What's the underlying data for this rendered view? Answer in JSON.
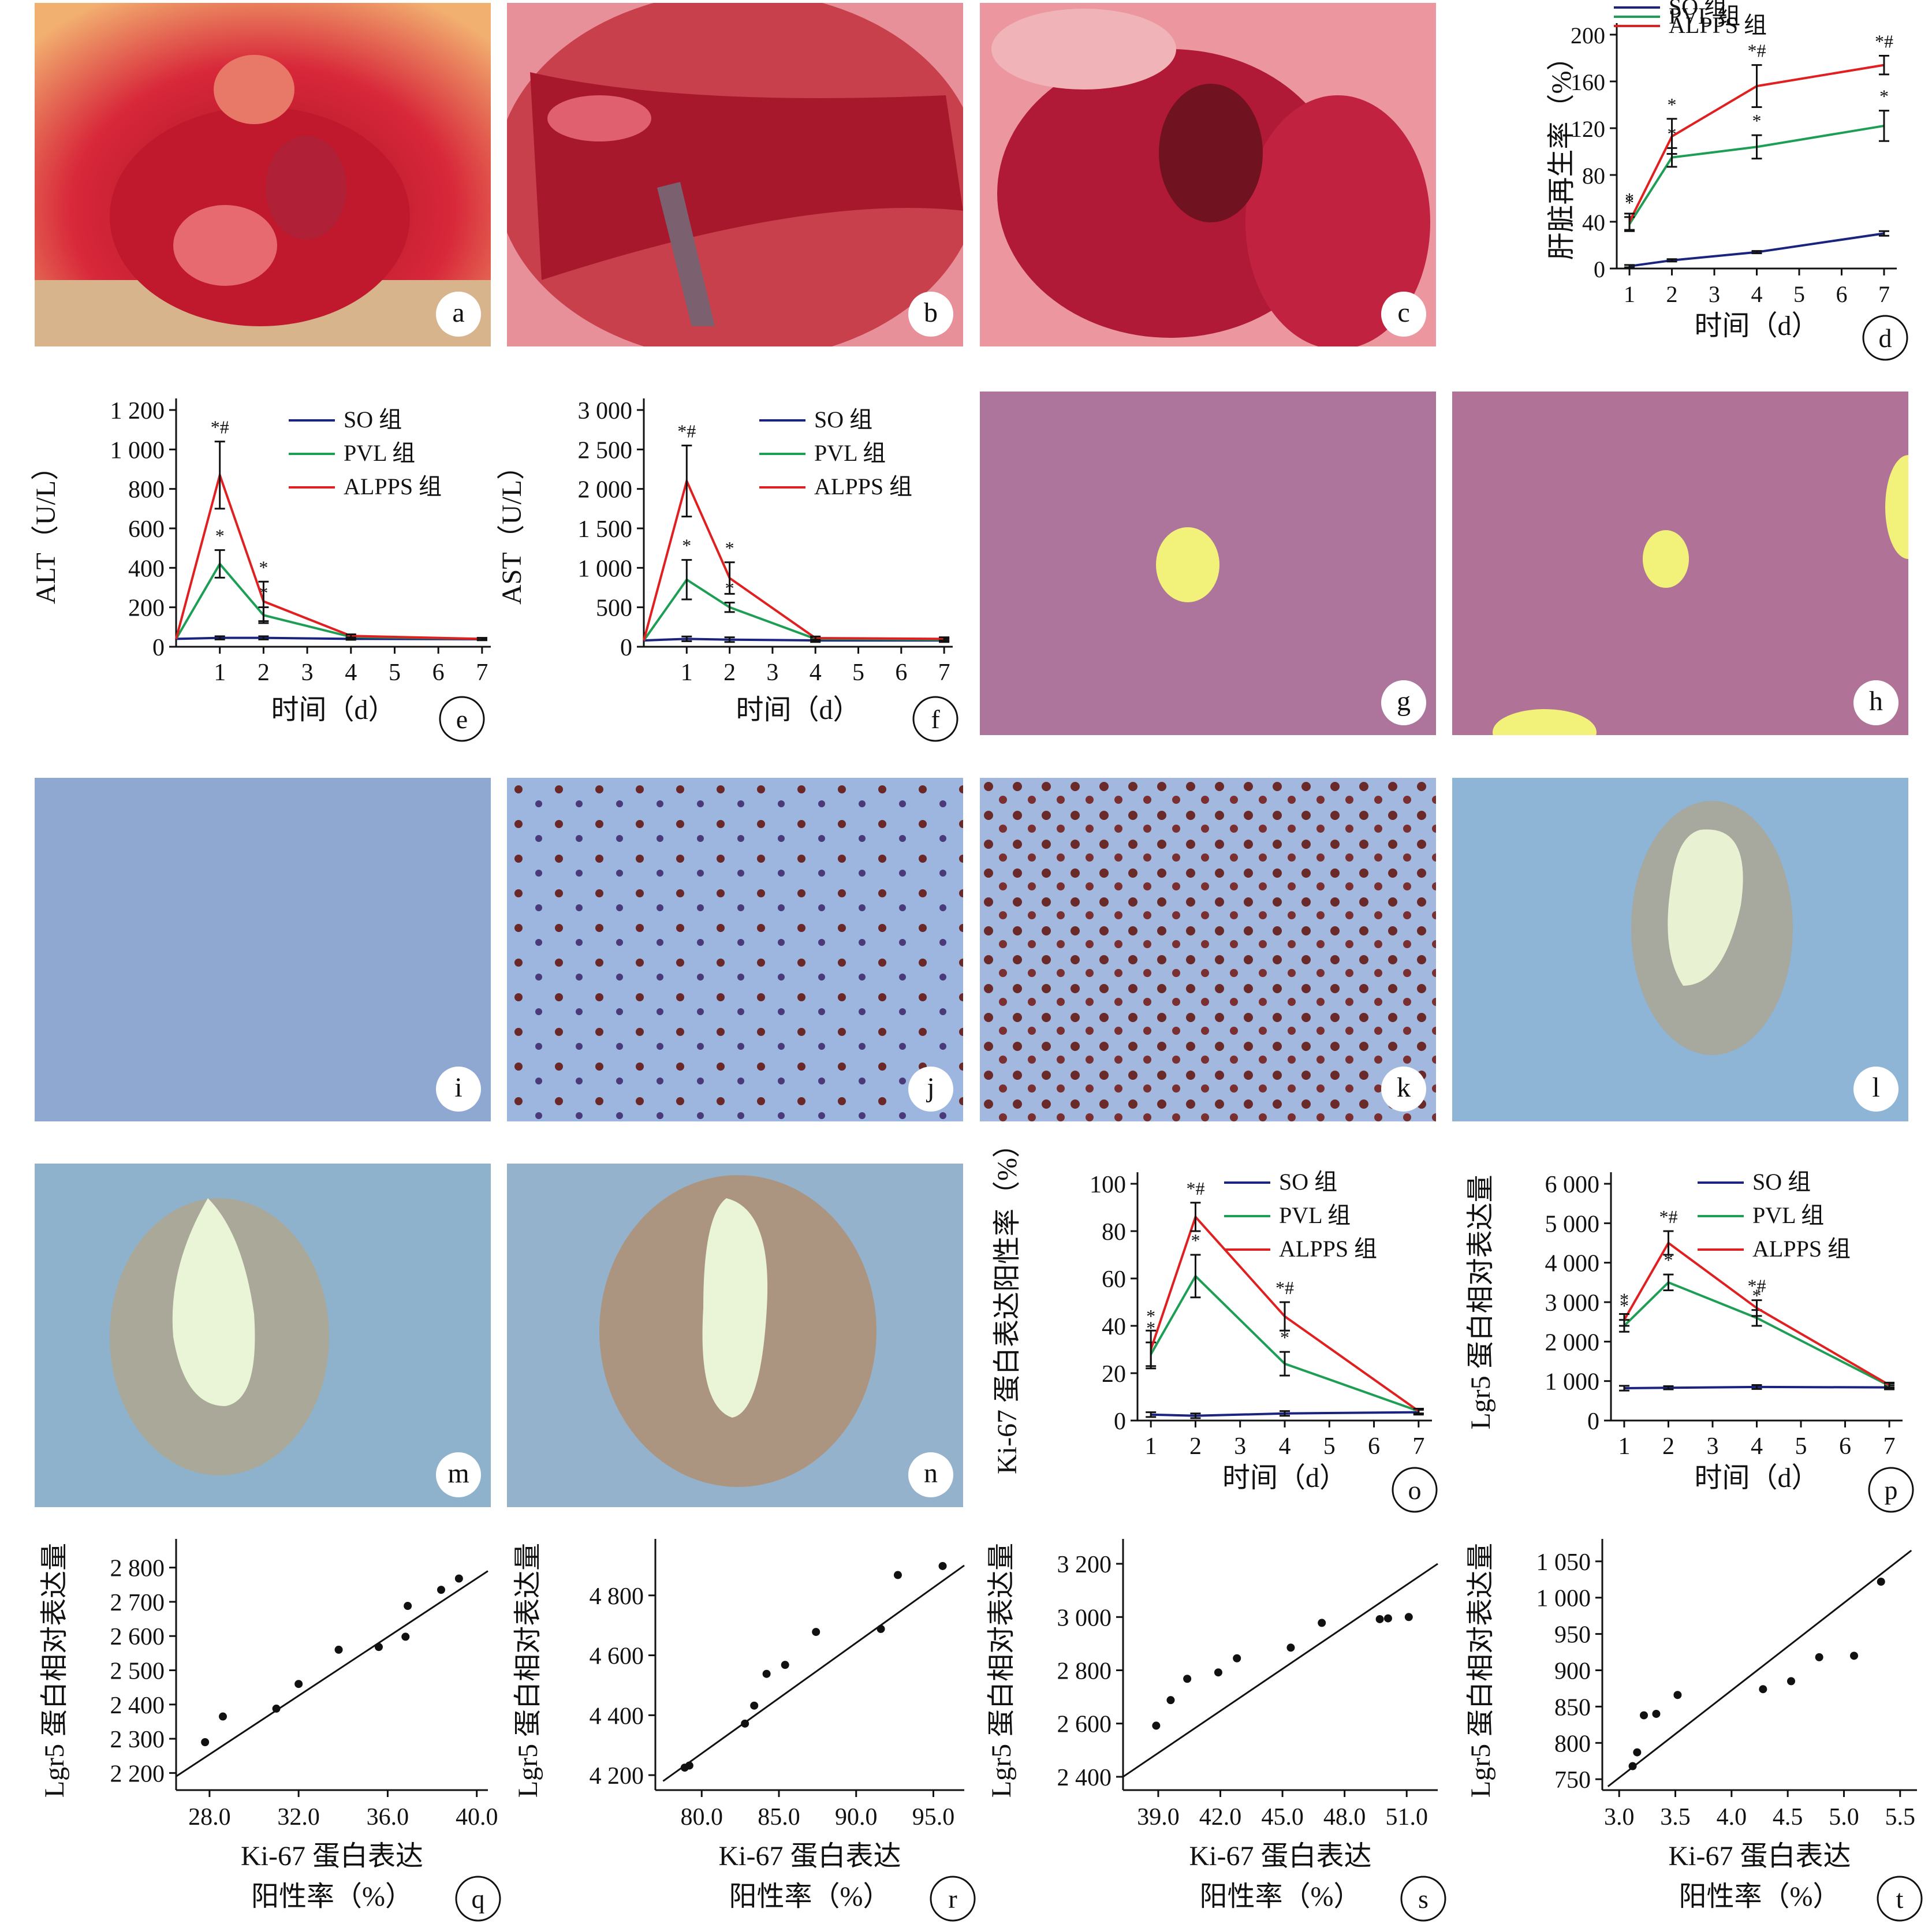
{
  "panels": {
    "a": {
      "letter": "a",
      "kind": "surgery-photo"
    },
    "b": {
      "letter": "b",
      "kind": "surgery-photo"
    },
    "c": {
      "letter": "c",
      "kind": "surgery-photo"
    },
    "g": {
      "letter": "g",
      "kind": "he-stain"
    },
    "h": {
      "letter": "h",
      "kind": "he-stain"
    },
    "i": {
      "letter": "i",
      "kind": "ihc-ki67"
    },
    "j": {
      "letter": "j",
      "kind": "ihc-ki67"
    },
    "k": {
      "letter": "k",
      "kind": "ihc-ki67"
    },
    "l": {
      "letter": "l",
      "kind": "ihc-lgr5"
    },
    "m": {
      "letter": "m",
      "kind": "ihc-lgr5"
    },
    "n": {
      "letter": "n",
      "kind": "ihc-lgr5"
    }
  },
  "colors": {
    "so": "#1a237e",
    "pvl": "#1e9e55",
    "alpps": "#e02020",
    "axis": "#111111"
  },
  "chart_data": [
    {
      "id": "d",
      "type": "line",
      "letter": "d",
      "x": [
        1,
        2,
        4,
        7
      ],
      "xticks": [
        "1",
        "2",
        "3",
        "4",
        "5",
        "6",
        "7"
      ],
      "xlim": [
        0.7,
        7.3
      ],
      "xlabel": "时间（d）",
      "ylabel": "肝脏再生率（%）",
      "ylim": [
        0,
        200
      ],
      "yticks": [
        "0",
        "40",
        "80",
        "120",
        "160",
        "200"
      ],
      "ytick_values": [
        0,
        40,
        80,
        120,
        160,
        200
      ],
      "legend_position": "top-right",
      "series": [
        {
          "name": "SO 组",
          "values": [
            2,
            7,
            14,
            30
          ],
          "err": [
            1,
            1,
            1,
            2
          ],
          "marks": [
            "",
            "",
            "",
            ""
          ]
        },
        {
          "name": "PVL 组",
          "values": [
            38,
            95,
            104,
            122
          ],
          "err": [
            6,
            8,
            10,
            13
          ],
          "marks": [
            "*",
            "*",
            "*",
            "*"
          ]
        },
        {
          "name": "ALPPS 组",
          "values": [
            40,
            113,
            156,
            174
          ],
          "err": [
            7,
            15,
            18,
            8
          ],
          "marks": [
            "*",
            "*",
            "*#",
            "*#"
          ]
        }
      ]
    },
    {
      "id": "e",
      "type": "line",
      "letter": "e",
      "x": [
        0,
        1,
        2,
        4,
        7
      ],
      "xticks": [
        "1",
        "2",
        "3",
        "4",
        "5",
        "6",
        "7"
      ],
      "xlim": [
        0,
        7.2
      ],
      "xlabel": "时间（d）",
      "ylabel": "ALT（U/L）",
      "ylim": [
        0,
        1200
      ],
      "yticks": [
        "0",
        "200",
        "400",
        "600",
        "800",
        "1 000",
        "1 200"
      ],
      "ytick_values": [
        0,
        200,
        400,
        600,
        800,
        1000,
        1200
      ],
      "legend_position": "top-right",
      "series": [
        {
          "name": "SO 组",
          "values": [
            40,
            45,
            45,
            40,
            38
          ],
          "err": [
            0,
            8,
            8,
            5,
            5
          ],
          "marks": [
            "",
            "",
            "",
            "",
            ""
          ]
        },
        {
          "name": "PVL 组",
          "values": [
            40,
            420,
            160,
            50,
            40
          ],
          "err": [
            0,
            70,
            40,
            8,
            5
          ],
          "marks": [
            "",
            "*",
            "*",
            "",
            ""
          ]
        },
        {
          "name": "ALPPS 组",
          "values": [
            40,
            870,
            230,
            55,
            40
          ],
          "err": [
            0,
            170,
            100,
            8,
            5
          ],
          "marks": [
            "",
            "*#",
            "*",
            "",
            ""
          ]
        }
      ]
    },
    {
      "id": "f",
      "type": "line",
      "letter": "f",
      "x": [
        0,
        1,
        2,
        4,
        7
      ],
      "xticks": [
        "1",
        "2",
        "3",
        "4",
        "5",
        "6",
        "7"
      ],
      "xlim": [
        0,
        7.2
      ],
      "xlabel": "时间（d）",
      "ylabel": "AST（U/L）",
      "ylim": [
        0,
        3000
      ],
      "yticks": [
        "0",
        "500",
        "1 000",
        "1 500",
        "2 000",
        "2 500",
        "3 000"
      ],
      "ytick_values": [
        0,
        500,
        1000,
        1500,
        2000,
        2500,
        3000
      ],
      "legend_position": "top-right",
      "series": [
        {
          "name": "SO 组",
          "values": [
            80,
            100,
            90,
            80,
            80
          ],
          "err": [
            0,
            30,
            30,
            20,
            20
          ],
          "marks": [
            "",
            "",
            "",
            "",
            ""
          ]
        },
        {
          "name": "PVL 组",
          "values": [
            80,
            850,
            500,
            100,
            90
          ],
          "err": [
            0,
            250,
            60,
            20,
            20
          ],
          "marks": [
            "",
            "*",
            "*",
            "",
            ""
          ]
        },
        {
          "name": "ALPPS 组",
          "values": [
            80,
            2100,
            870,
            110,
            100
          ],
          "err": [
            0,
            450,
            200,
            20,
            20
          ],
          "marks": [
            "",
            "*#",
            "*",
            "",
            ""
          ]
        }
      ]
    },
    {
      "id": "o",
      "type": "line",
      "letter": "o",
      "x": [
        1,
        2,
        4,
        7
      ],
      "xticks": [
        "1",
        "2",
        "3",
        "4",
        "5",
        "6",
        "7"
      ],
      "xlim": [
        0.7,
        7.3
      ],
      "xlabel": "时间（d）",
      "ylabel": "Ki-67 蛋白表达阳性率（%）",
      "ylim": [
        0,
        100
      ],
      "yticks": [
        "0",
        "20",
        "40",
        "60",
        "80",
        "100"
      ],
      "ytick_values": [
        0,
        20,
        40,
        60,
        80,
        100
      ],
      "legend_position": "top-right",
      "series": [
        {
          "name": "SO 组",
          "values": [
            2.5,
            2,
            3,
            3.5
          ],
          "err": [
            1,
            1,
            1,
            1
          ],
          "marks": [
            "",
            "",
            "",
            ""
          ]
        },
        {
          "name": "PVL 组",
          "values": [
            28,
            61,
            24,
            4
          ],
          "err": [
            5,
            9,
            5,
            1
          ],
          "marks": [
            "*",
            "*",
            "*",
            ""
          ]
        },
        {
          "name": "ALPPS 组",
          "values": [
            30,
            86,
            44,
            4
          ],
          "err": [
            8,
            6,
            6,
            1
          ],
          "marks": [
            "*",
            "*#",
            "*#",
            ""
          ]
        }
      ]
    },
    {
      "id": "p",
      "type": "line",
      "letter": "p",
      "x": [
        1,
        2,
        4,
        7
      ],
      "xticks": [
        "1",
        "2",
        "3",
        "4",
        "5",
        "6",
        "7"
      ],
      "xlim": [
        0.7,
        7.3
      ],
      "xlabel": "时间（d）",
      "ylabel": "Lgr5 蛋白相对表达量",
      "ylim": [
        0,
        6000
      ],
      "yticks": [
        "0",
        "1 000",
        "2 000",
        "3 000",
        "4 000",
        "5 000",
        "6 000"
      ],
      "ytick_values": [
        0,
        1000,
        2000,
        3000,
        4000,
        5000,
        6000
      ],
      "legend_position": "top-right",
      "series": [
        {
          "name": "SO 组",
          "values": [
            820,
            830,
            850,
            840
          ],
          "err": [
            60,
            40,
            50,
            50
          ],
          "marks": [
            "",
            "",
            "",
            ""
          ]
        },
        {
          "name": "PVL 组",
          "values": [
            2400,
            3500,
            2600,
            880
          ],
          "err": [
            150,
            200,
            200,
            60
          ],
          "marks": [
            "*",
            "*",
            "*",
            ""
          ]
        },
        {
          "name": "ALPPS 组",
          "values": [
            2550,
            4500,
            2850,
            900
          ],
          "err": [
            150,
            300,
            200,
            60
          ],
          "marks": [
            "*",
            "*#",
            "*#",
            ""
          ]
        }
      ]
    },
    {
      "id": "q",
      "type": "scatter",
      "letter": "q",
      "xlabel_line1": "Ki-67 蛋白表达",
      "xlabel_line2": "阳性率（%）",
      "ylabel": "Lgr5 蛋白相对表达量",
      "xlim": [
        26.5,
        40.5
      ],
      "xticks": [
        "28.0",
        "32.0",
        "36.0",
        "40.0"
      ],
      "xtick_values": [
        28,
        32,
        36,
        40
      ],
      "ylim": [
        2150,
        2850
      ],
      "yticks": [
        "2 200",
        "2 300",
        "2 400",
        "2 500",
        "2 600",
        "2 700",
        "2 800"
      ],
      "ytick_values": [
        2200,
        2300,
        2400,
        2500,
        2600,
        2700,
        2800
      ],
      "x": [
        27.8,
        28.6,
        31.0,
        32.0,
        33.8,
        35.6,
        36.8,
        36.9,
        38.4,
        39.2
      ],
      "y": [
        2290,
        2365,
        2388,
        2460,
        2560,
        2568,
        2598,
        2688,
        2735,
        2768
      ],
      "fit": [
        [
          26.5,
          2190
        ],
        [
          40.5,
          2790
        ]
      ]
    },
    {
      "id": "r",
      "type": "scatter",
      "letter": "r",
      "xlabel_line1": "Ki-67 蛋白表达",
      "xlabel_line2": "阳性率（%）",
      "ylabel": "Lgr5 蛋白相对表达量",
      "xlim": [
        77,
        97
      ],
      "xticks": [
        "80.0",
        "85.0",
        "90.0",
        "95.0"
      ],
      "xtick_values": [
        80,
        85,
        90,
        95
      ],
      "ylim": [
        4150,
        4950
      ],
      "yticks": [
        "4 200",
        "4 400",
        "4 600",
        "4 800"
      ],
      "ytick_values": [
        4200,
        4400,
        4600,
        4800
      ],
      "x": [
        78.9,
        79.2,
        82.8,
        83.4,
        84.2,
        85.4,
        87.4,
        91.6,
        92.7,
        95.6
      ],
      "y": [
        4225,
        4232,
        4372,
        4432,
        4538,
        4568,
        4678,
        4688,
        4868,
        4898
      ],
      "fit": [
        [
          77.5,
          4180
        ],
        [
          97,
          4900
        ]
      ]
    },
    {
      "id": "s",
      "type": "scatter",
      "letter": "s",
      "xlabel_line1": "Ki-67 蛋白表达",
      "xlabel_line2": "阳性率（%）",
      "ylabel": "Lgr5 蛋白相对表达量",
      "xlim": [
        37.3,
        52.5
      ],
      "xticks": [
        "39.0",
        "42.0",
        "45.0",
        "48.0",
        "51.0"
      ],
      "xtick_values": [
        39,
        42,
        45,
        48,
        51
      ],
      "ylim": [
        2350,
        3250
      ],
      "yticks": [
        "2 400",
        "2 600",
        "2 800",
        "3 000",
        "3 200"
      ],
      "ytick_values": [
        2400,
        2600,
        2800,
        3000,
        3200
      ],
      "x": [
        38.9,
        39.6,
        40.4,
        41.9,
        42.8,
        45.4,
        46.9,
        49.7,
        50.1,
        51.1
      ],
      "y": [
        2592,
        2688,
        2768,
        2792,
        2845,
        2885,
        2978,
        2992,
        2995,
        3000
      ],
      "fit": [
        [
          37.3,
          2400
        ],
        [
          52.5,
          3200
        ]
      ]
    },
    {
      "id": "t",
      "type": "scatter",
      "letter": "t",
      "xlabel_line1": "Ki-67 蛋白表达",
      "xlabel_line2": "阳性率（%）",
      "ylabel": "Lgr5 蛋白相对表达量",
      "xlim": [
        2.85,
        5.65
      ],
      "xticks": [
        "3.0",
        "3.5",
        "4.0",
        "4.5",
        "5.0",
        "5.5"
      ],
      "xtick_values": [
        3.0,
        3.5,
        4.0,
        4.5,
        5.0,
        5.5
      ],
      "ylim": [
        735,
        1065
      ],
      "yticks": [
        "750",
        "800",
        "850",
        "900",
        "950",
        "1 000",
        "1 050"
      ],
      "ytick_values": [
        750,
        800,
        850,
        900,
        950,
        1000,
        1050
      ],
      "x": [
        3.12,
        3.16,
        3.22,
        3.33,
        3.52,
        4.28,
        4.53,
        4.78,
        5.09,
        5.33
      ],
      "y": [
        768,
        787,
        838,
        840,
        866,
        874,
        885,
        918,
        920,
        1022
      ],
      "fit": [
        [
          2.9,
          740
        ],
        [
          5.6,
          1065
        ]
      ]
    }
  ]
}
